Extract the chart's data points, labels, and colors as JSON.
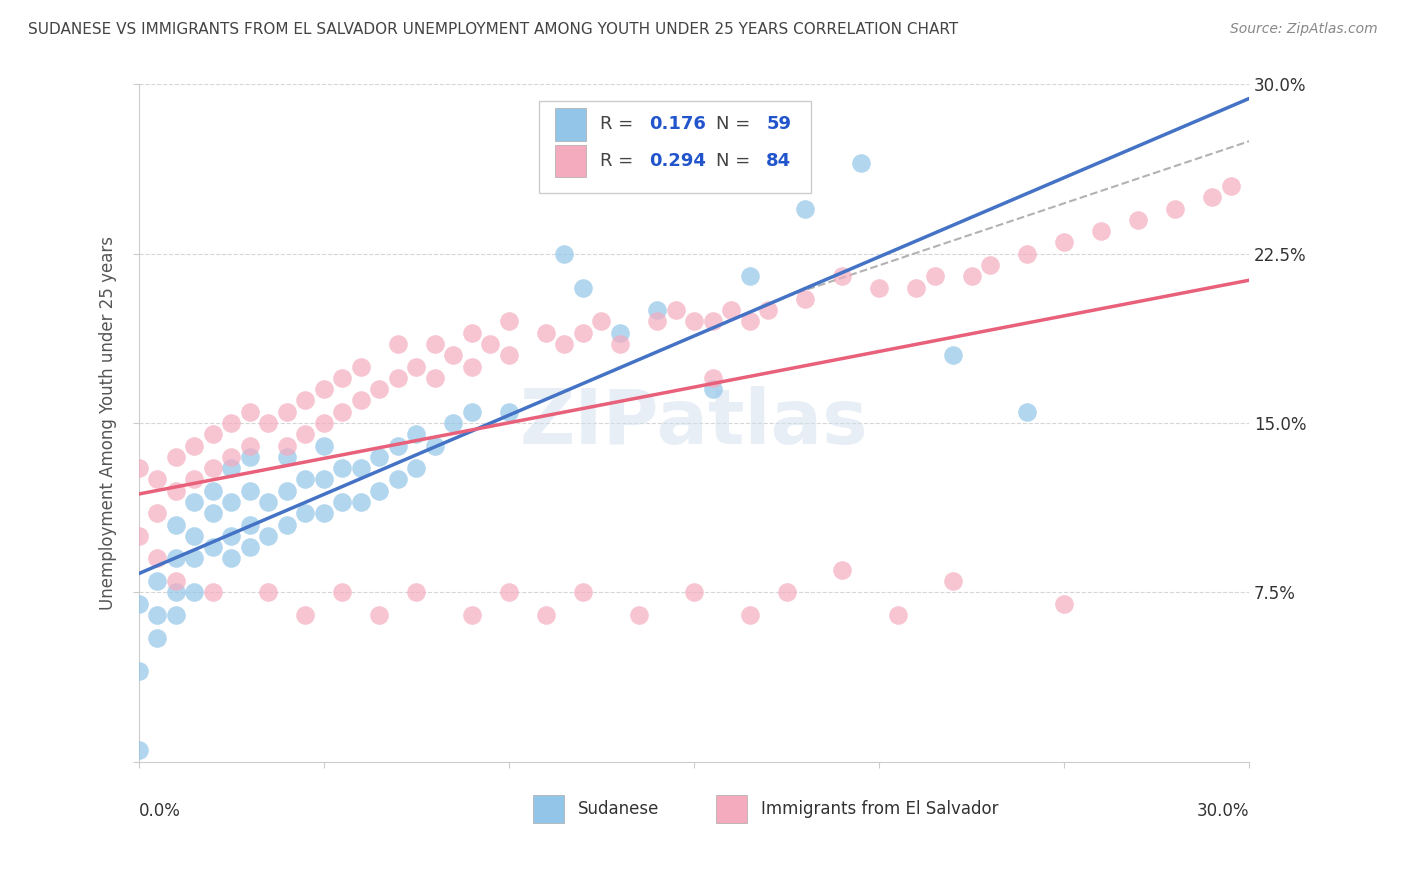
{
  "title": "SUDANESE VS IMMIGRANTS FROM EL SALVADOR UNEMPLOYMENT AMONG YOUTH UNDER 25 YEARS CORRELATION CHART",
  "source": "Source: ZipAtlas.com",
  "ylabel": "Unemployment Among Youth under 25 years",
  "xlim": [
    0.0,
    0.3
  ],
  "ylim": [
    0.0,
    0.3
  ],
  "R_sudanese": 0.176,
  "N_sudanese": 59,
  "R_salvador": 0.294,
  "N_salvador": 84,
  "color_sudanese": "#92C5E8",
  "color_salvador": "#F5ABBE",
  "line_color_sudanese": "#4472C4",
  "line_color_salvador": "#E8607A",
  "line_color_dashed": "#AAAAAA",
  "background_color": "#FFFFFF",
  "grid_color": "#CCCCCC",
  "title_color": "#444444",
  "legend_text_color": "#444444",
  "legend_value_color": "#2255CC",
  "watermark_color": "#CCDDEE",
  "sudanese_x": [
    0.0,
    0.0,
    0.0,
    0.005,
    0.005,
    0.005,
    0.01,
    0.01,
    0.01,
    0.01,
    0.015,
    0.015,
    0.015,
    0.015,
    0.02,
    0.02,
    0.02,
    0.025,
    0.025,
    0.025,
    0.025,
    0.03,
    0.03,
    0.03,
    0.03,
    0.035,
    0.035,
    0.04,
    0.04,
    0.04,
    0.045,
    0.045,
    0.05,
    0.05,
    0.05,
    0.055,
    0.055,
    0.06,
    0.06,
    0.065,
    0.065,
    0.07,
    0.07,
    0.075,
    0.075,
    0.08,
    0.085,
    0.09,
    0.1,
    0.115,
    0.12,
    0.13,
    0.14,
    0.155,
    0.165,
    0.18,
    0.195,
    0.22,
    0.24
  ],
  "sudanese_y": [
    0.005,
    0.04,
    0.07,
    0.055,
    0.065,
    0.08,
    0.065,
    0.075,
    0.09,
    0.105,
    0.075,
    0.09,
    0.1,
    0.115,
    0.095,
    0.11,
    0.12,
    0.09,
    0.1,
    0.115,
    0.13,
    0.095,
    0.105,
    0.12,
    0.135,
    0.1,
    0.115,
    0.105,
    0.12,
    0.135,
    0.11,
    0.125,
    0.11,
    0.125,
    0.14,
    0.115,
    0.13,
    0.115,
    0.13,
    0.12,
    0.135,
    0.125,
    0.14,
    0.13,
    0.145,
    0.14,
    0.15,
    0.155,
    0.155,
    0.225,
    0.21,
    0.19,
    0.2,
    0.165,
    0.215,
    0.245,
    0.265,
    0.18,
    0.155
  ],
  "salvador_x": [
    0.0,
    0.0,
    0.005,
    0.005,
    0.01,
    0.01,
    0.015,
    0.015,
    0.02,
    0.02,
    0.025,
    0.025,
    0.03,
    0.03,
    0.035,
    0.04,
    0.04,
    0.045,
    0.045,
    0.05,
    0.05,
    0.055,
    0.055,
    0.06,
    0.06,
    0.065,
    0.07,
    0.07,
    0.075,
    0.08,
    0.08,
    0.085,
    0.09,
    0.09,
    0.095,
    0.1,
    0.1,
    0.11,
    0.115,
    0.12,
    0.125,
    0.13,
    0.14,
    0.145,
    0.15,
    0.155,
    0.155,
    0.16,
    0.165,
    0.17,
    0.18,
    0.19,
    0.2,
    0.21,
    0.215,
    0.225,
    0.23,
    0.24,
    0.25,
    0.26,
    0.27,
    0.28,
    0.29,
    0.295,
    0.25,
    0.22,
    0.205,
    0.19,
    0.175,
    0.165,
    0.15,
    0.135,
    0.12,
    0.11,
    0.1,
    0.09,
    0.075,
    0.065,
    0.055,
    0.045,
    0.035,
    0.02,
    0.01,
    0.005
  ],
  "salvador_y": [
    0.1,
    0.13,
    0.11,
    0.125,
    0.12,
    0.135,
    0.125,
    0.14,
    0.13,
    0.145,
    0.135,
    0.15,
    0.14,
    0.155,
    0.15,
    0.14,
    0.155,
    0.145,
    0.16,
    0.15,
    0.165,
    0.155,
    0.17,
    0.16,
    0.175,
    0.165,
    0.17,
    0.185,
    0.175,
    0.17,
    0.185,
    0.18,
    0.175,
    0.19,
    0.185,
    0.18,
    0.195,
    0.19,
    0.185,
    0.19,
    0.195,
    0.185,
    0.195,
    0.2,
    0.195,
    0.195,
    0.17,
    0.2,
    0.195,
    0.2,
    0.205,
    0.215,
    0.21,
    0.21,
    0.215,
    0.215,
    0.22,
    0.225,
    0.23,
    0.235,
    0.24,
    0.245,
    0.25,
    0.255,
    0.07,
    0.08,
    0.065,
    0.085,
    0.075,
    0.065,
    0.075,
    0.065,
    0.075,
    0.065,
    0.075,
    0.065,
    0.075,
    0.065,
    0.075,
    0.065,
    0.075,
    0.075,
    0.08,
    0.09
  ]
}
